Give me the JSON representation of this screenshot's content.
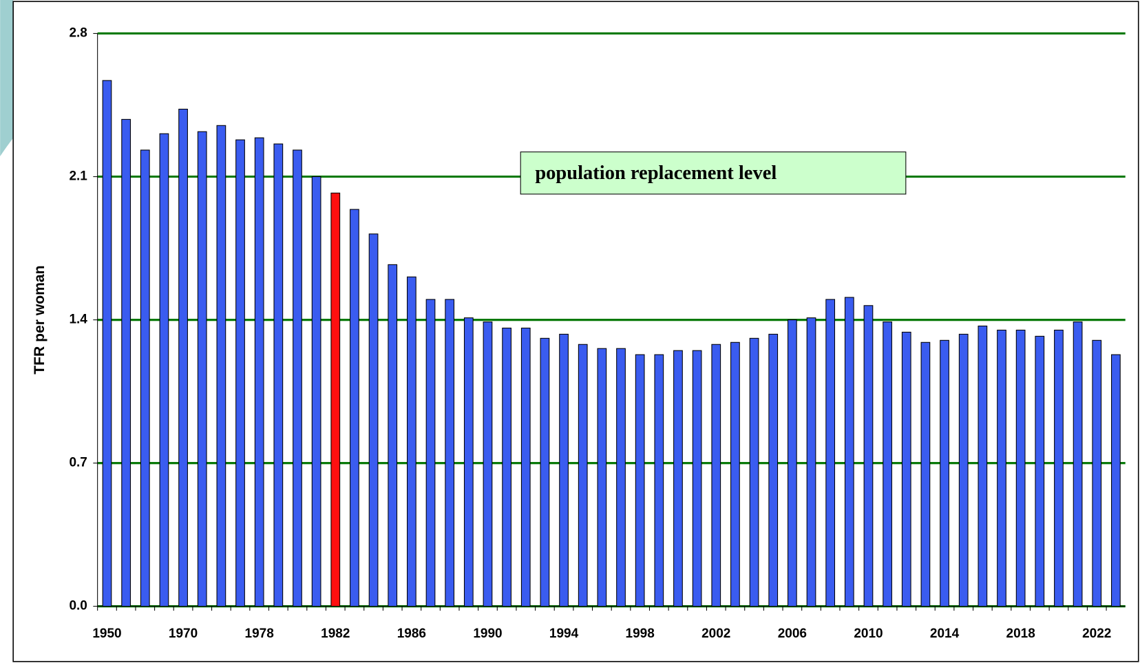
{
  "chart_data": {
    "type": "bar",
    "y_label": "TFR per woman",
    "annotation": "population replacement level",
    "categories": [
      "1950",
      null,
      null,
      null,
      "1970",
      null,
      null,
      null,
      "1978",
      null,
      null,
      null,
      "1982",
      null,
      null,
      null,
      "1986",
      null,
      null,
      null,
      "1990",
      null,
      null,
      null,
      "1994",
      null,
      null,
      null,
      "1998",
      null,
      null,
      null,
      "2002",
      null,
      null,
      null,
      "2006",
      null,
      null,
      null,
      "2010",
      null,
      null,
      null,
      "2014",
      null,
      null,
      null,
      "2018",
      null,
      null,
      null,
      "2022",
      null
    ],
    "values": [
      2.57,
      2.38,
      2.23,
      2.31,
      2.43,
      2.32,
      2.35,
      2.28,
      2.29,
      2.26,
      2.23,
      2.1,
      2.02,
      1.94,
      1.82,
      1.67,
      1.61,
      1.5,
      1.5,
      1.41,
      1.39,
      1.36,
      1.36,
      1.31,
      1.33,
      1.28,
      1.26,
      1.26,
      1.23,
      1.23,
      1.25,
      1.25,
      1.28,
      1.29,
      1.31,
      1.33,
      1.4,
      1.41,
      1.5,
      1.51,
      1.47,
      1.39,
      1.34,
      1.29,
      1.3,
      1.33,
      1.37,
      1.35,
      1.35,
      1.32,
      1.35,
      1.39,
      1.3,
      1.23
    ],
    "colors": [
      "#3a5cf0",
      "#3a5cf0",
      "#3a5cf0",
      "#3a5cf0",
      "#3a5cf0",
      "#3a5cf0",
      "#3a5cf0",
      "#3a5cf0",
      "#3a5cf0",
      "#3a5cf0",
      "#3a5cf0",
      "#3a5cf0",
      "#ff1010",
      "#3a5cf0",
      "#3a5cf0",
      "#3a5cf0",
      "#3a5cf0",
      "#3a5cf0",
      "#3a5cf0",
      "#3a5cf0",
      "#3a5cf0",
      "#3a5cf0",
      "#3a5cf0",
      "#3a5cf0",
      "#3a5cf0",
      "#3a5cf0",
      "#3a5cf0",
      "#3a5cf0",
      "#3a5cf0",
      "#3a5cf0",
      "#3a5cf0",
      "#3a5cf0",
      "#3a5cf0",
      "#3a5cf0",
      "#3a5cf0",
      "#3a5cf0",
      "#3a5cf0",
      "#3a5cf0",
      "#3a5cf0",
      "#3a5cf0",
      "#3a5cf0",
      "#3a5cf0",
      "#3a5cf0",
      "#3a5cf0",
      "#3a5cf0",
      "#3a5cf0",
      "#3a5cf0",
      "#3a5cf0",
      "#3a5cf0",
      "#3a5cf0",
      "#3a5cf0",
      "#3a5cf0",
      "#3a5cf0",
      "#3a5cf0"
    ],
    "grid_color": "#0a7a0a",
    "ylim": [
      0,
      2.8
    ],
    "yticks": [
      {
        "value": 0,
        "label": "0.0"
      },
      0.7,
      1.4,
      2.1,
      2.8
    ],
    "grid": true
  }
}
